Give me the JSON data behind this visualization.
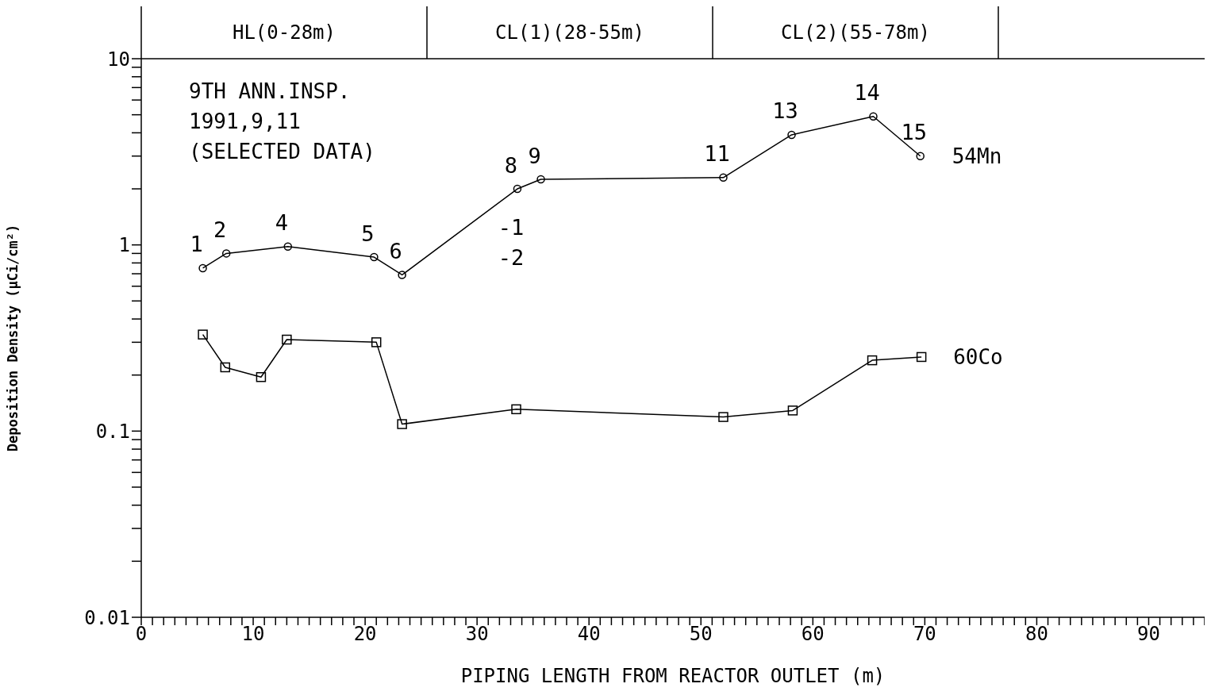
{
  "chart_data": {
    "type": "line",
    "xlabel": "PIPING LENGTH FROM REACTOR OUTLET (m)",
    "ylabel": "Deposition Density (μCi/cm²)",
    "log": "y",
    "legend": "right",
    "line_style": "solid",
    "xlim": [
      0,
      95
    ],
    "ylim": [
      0.01,
      10
    ],
    "xticks": [
      0,
      {
        "value": 1,
        "label": null
      },
      {
        "value": 2,
        "label": null
      },
      {
        "value": 3,
        "label": null
      },
      {
        "value": 4,
        "label": null
      },
      {
        "value": 5,
        "label": null
      },
      {
        "value": 6,
        "label": null
      },
      {
        "value": 7,
        "label": null
      },
      {
        "value": 8,
        "label": null
      },
      {
        "value": 9,
        "label": null
      },
      10,
      {
        "value": 11,
        "label": null
      },
      {
        "value": 12,
        "label": null
      },
      {
        "value": 13,
        "label": null
      },
      {
        "value": 14,
        "label": null
      },
      {
        "value": 15,
        "label": null
      },
      {
        "value": 16,
        "label": null
      },
      {
        "value": 17,
        "label": null
      },
      {
        "value": 18,
        "label": null
      },
      {
        "value": 19,
        "label": null
      },
      20,
      {
        "value": 21,
        "label": null
      },
      {
        "value": 22,
        "label": null
      },
      {
        "value": 23,
        "label": null
      },
      {
        "value": 24,
        "label": null
      },
      {
        "value": 25,
        "label": null
      },
      {
        "value": 26,
        "label": null
      },
      {
        "value": 27,
        "label": null
      },
      {
        "value": 28,
        "label": null
      },
      {
        "value": 29,
        "label": null
      },
      30,
      {
        "value": 31,
        "label": null
      },
      {
        "value": 32,
        "label": null
      },
      {
        "value": 33,
        "label": null
      },
      {
        "value": 34,
        "label": null
      },
      {
        "value": 35,
        "label": null
      },
      {
        "value": 36,
        "label": null
      },
      {
        "value": 37,
        "label": null
      },
      {
        "value": 38,
        "label": null
      },
      {
        "value": 39,
        "label": null
      },
      40,
      {
        "value": 41,
        "label": null
      },
      {
        "value": 42,
        "label": null
      },
      {
        "value": 43,
        "label": null
      },
      {
        "value": 44,
        "label": null
      },
      {
        "value": 45,
        "label": null
      },
      {
        "value": 46,
        "label": null
      },
      {
        "value": 47,
        "label": null
      },
      {
        "value": 48,
        "label": null
      },
      {
        "value": 49,
        "label": null
      },
      50,
      {
        "value": 51,
        "label": null
      },
      {
        "value": 52,
        "label": null
      },
      {
        "value": 53,
        "label": null
      },
      {
        "value": 54,
        "label": null
      },
      {
        "value": 55,
        "label": null
      },
      {
        "value": 56,
        "label": null
      },
      {
        "value": 57,
        "label": null
      },
      {
        "value": 58,
        "label": null
      },
      {
        "value": 59,
        "label": null
      },
      60,
      {
        "value": 61,
        "label": null
      },
      {
        "value": 62,
        "label": null
      },
      {
        "value": 63,
        "label": null
      },
      {
        "value": 64,
        "label": null
      },
      {
        "value": 65,
        "label": null
      },
      {
        "value": 66,
        "label": null
      },
      {
        "value": 67,
        "label": null
      },
      {
        "value": 68,
        "label": null
      },
      {
        "value": 69,
        "label": null
      },
      70,
      {
        "value": 71,
        "label": null
      },
      {
        "value": 72,
        "label": null
      },
      {
        "value": 73,
        "label": null
      },
      {
        "value": 74,
        "label": null
      },
      {
        "value": 75,
        "label": null
      },
      {
        "value": 76,
        "label": null
      },
      {
        "value": 77,
        "label": null
      },
      {
        "value": 78,
        "label": null
      },
      {
        "value": 79,
        "label": null
      },
      80,
      {
        "value": 81,
        "label": null
      },
      {
        "value": 82,
        "label": null
      },
      {
        "value": 83,
        "label": null
      },
      {
        "value": 84,
        "label": null
      },
      {
        "value": 85,
        "label": null
      },
      {
        "value": 86,
        "label": null
      },
      {
        "value": 87,
        "label": null
      },
      {
        "value": 88,
        "label": null
      },
      {
        "value": 89,
        "label": null
      },
      90,
      {
        "value": 91,
        "label": null
      },
      {
        "value": 92,
        "label": null
      },
      {
        "value": 93,
        "label": null
      },
      {
        "value": 94,
        "label": null
      },
      {
        "value": 95,
        "label": null
      }
    ],
    "yticks": [
      0.01,
      {
        "value": 0.02,
        "label": null
      },
      {
        "value": 0.03,
        "label": null
      },
      {
        "value": 0.04,
        "label": null
      },
      {
        "value": 0.05,
        "label": null
      },
      {
        "value": 0.06,
        "label": null
      },
      {
        "value": 0.07,
        "label": null
      },
      {
        "value": 0.08,
        "label": null
      },
      {
        "value": 0.09,
        "label": null
      },
      0.1,
      {
        "value": 0.2,
        "label": null
      },
      {
        "value": 0.3,
        "label": null
      },
      {
        "value": 0.4,
        "label": null
      },
      {
        "value": 0.5,
        "label": null
      },
      {
        "value": 0.6,
        "label": null
      },
      {
        "value": 0.7,
        "label": null
      },
      {
        "value": 0.8,
        "label": null
      },
      {
        "value": 0.9,
        "label": null
      },
      1,
      {
        "value": 2,
        "label": null
      },
      {
        "value": 3,
        "label": null
      },
      {
        "value": 4,
        "label": null
      },
      {
        "value": 5,
        "label": null
      },
      {
        "value": 6,
        "label": null
      },
      {
        "value": 7,
        "label": null
      },
      {
        "value": 8,
        "label": null
      },
      {
        "value": 9,
        "label": null
      },
      10
    ],
    "series": [
      {
        "name": "54Mn",
        "color": "#000000",
        "marker": "circle",
        "x": [
          5.5,
          7.6,
          13.1,
          20.8,
          23.3,
          33.6,
          35.7,
          52.0,
          58.1,
          65.4,
          69.6
        ],
        "values": [
          0.75,
          0.9,
          0.98,
          0.86,
          0.69,
          2.0,
          2.25,
          2.3,
          3.9,
          4.9,
          3.0
        ]
      },
      {
        "name": "60Co",
        "color": "#000000",
        "marker": "square",
        "x": [
          5.5,
          7.5,
          10.7,
          13.0,
          21.0,
          23.3,
          33.5,
          52.0,
          58.2,
          65.3,
          69.7
        ],
        "values": [
          0.33,
          0.22,
          0.195,
          0.31,
          0.3,
          0.109,
          0.131,
          0.119,
          0.129,
          0.24,
          0.25
        ]
      }
    ],
    "annotations": [
      "HL(0-28m)",
      "CL(1)(28-55m)",
      "CL(2)(55-78m)",
      "9TH ANN.INSP.",
      "1991,9,11",
      "(SELECTED DATA)",
      {
        "text": "1",
        "x": 5.5,
        "y": 0.75
      },
      {
        "text": "2",
        "x": 7.6,
        "y": 0.9
      },
      {
        "text": "4",
        "x": 13.1,
        "y": 0.98
      },
      {
        "text": "5",
        "x": 20.8,
        "y": 0.86
      },
      {
        "text": "6",
        "x": 23.3,
        "y": 0.69
      },
      {
        "text": "8",
        "x": 33.6,
        "y": 2.0
      },
      {
        "text": "-1",
        "x": 33.6,
        "y": 2.0
      },
      {
        "text": "-2",
        "x": 33.6,
        "y": 2.0
      },
      {
        "text": "9",
        "x": 35.7,
        "y": 2.25
      },
      {
        "text": "11",
        "x": 52.0,
        "y": 2.3
      },
      {
        "text": "13",
        "x": 58.1,
        "y": 3.9
      },
      {
        "text": "14",
        "x": 65.4,
        "y": 4.9
      },
      {
        "text": "15",
        "x": 69.6,
        "y": 3.0
      }
    ]
  }
}
